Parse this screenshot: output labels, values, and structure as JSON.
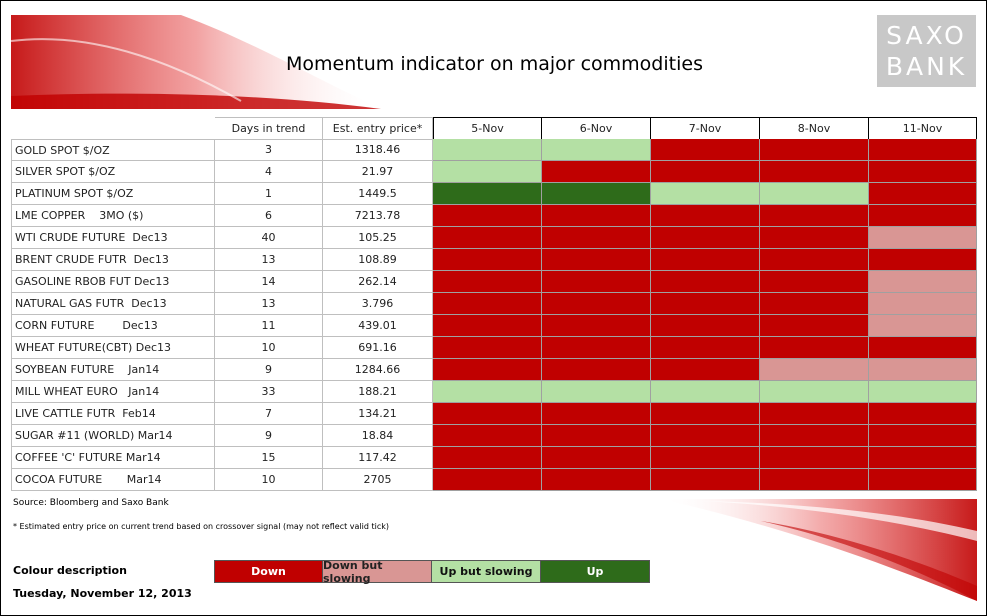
{
  "header": {
    "title": "Momentum indicator on major commodities",
    "logo": [
      "SAXO",
      "BANK"
    ]
  },
  "table": {
    "columns": [
      "Days in trend",
      "Est. entry price*",
      "5-Nov",
      "6-Nov",
      "7-Nov",
      "8-Nov",
      "11-Nov"
    ],
    "rows": [
      {
        "name": "GOLD SPOT $/OZ",
        "days": 3,
        "price": 1318.46,
        "trend": [
          "Up but slowing",
          "Up but slowing",
          "Down",
          "Down",
          "Down"
        ]
      },
      {
        "name": "SILVER SPOT $/OZ",
        "days": 4,
        "price": 21.97,
        "trend": [
          "Up but slowing",
          "Down",
          "Down",
          "Down",
          "Down"
        ]
      },
      {
        "name": "PLATINUM SPOT $/OZ",
        "days": 1,
        "price": 1449.5,
        "trend": [
          "Up",
          "Up",
          "Up but slowing",
          "Up but slowing",
          "Down"
        ]
      },
      {
        "name": "LME COPPER    3MO ($)",
        "days": 6,
        "price": 7213.78,
        "trend": [
          "Down",
          "Down",
          "Down",
          "Down",
          "Down"
        ]
      },
      {
        "name": "WTI CRUDE FUTURE  Dec13",
        "days": 40,
        "price": 105.25,
        "trend": [
          "Down",
          "Down",
          "Down",
          "Down",
          "Down but slowing"
        ]
      },
      {
        "name": "BRENT CRUDE FUTR  Dec13",
        "days": 13,
        "price": 108.89,
        "trend": [
          "Down",
          "Down",
          "Down",
          "Down",
          "Down"
        ]
      },
      {
        "name": "GASOLINE RBOB FUT Dec13",
        "days": 14,
        "price": 262.14,
        "trend": [
          "Down",
          "Down",
          "Down",
          "Down",
          "Down but slowing"
        ]
      },
      {
        "name": "NATURAL GAS FUTR  Dec13",
        "days": 13,
        "price": 3.796,
        "trend": [
          "Down",
          "Down",
          "Down",
          "Down",
          "Down but slowing"
        ]
      },
      {
        "name": "CORN FUTURE        Dec13",
        "days": 11,
        "price": 439.01,
        "trend": [
          "Down",
          "Down",
          "Down",
          "Down",
          "Down but slowing"
        ]
      },
      {
        "name": "WHEAT FUTURE(CBT) Dec13",
        "days": 10,
        "price": 691.16,
        "trend": [
          "Down",
          "Down",
          "Down",
          "Down",
          "Down"
        ]
      },
      {
        "name": "SOYBEAN FUTURE    Jan14",
        "days": 9,
        "price": 1284.66,
        "trend": [
          "Down",
          "Down",
          "Down",
          "Down but slowing",
          "Down but slowing"
        ]
      },
      {
        "name": "MILL WHEAT EURO   Jan14",
        "days": 33,
        "price": 188.21,
        "trend": [
          "Up but slowing",
          "Up but slowing",
          "Up but slowing",
          "Up but slowing",
          "Up but slowing"
        ]
      },
      {
        "name": "LIVE CATTLE FUTR  Feb14",
        "days": 7,
        "price": 134.21,
        "trend": [
          "Down",
          "Down",
          "Down",
          "Down",
          "Down"
        ]
      },
      {
        "name": "SUGAR #11 (WORLD) Mar14",
        "days": 9,
        "price": 18.84,
        "trend": [
          "Down",
          "Down",
          "Down",
          "Down",
          "Down"
        ]
      },
      {
        "name": "COFFEE 'C' FUTURE Mar14",
        "days": 15,
        "price": 117.42,
        "trend": [
          "Down",
          "Down",
          "Down",
          "Down",
          "Down"
        ]
      },
      {
        "name": "COCOA FUTURE       Mar14",
        "days": 10,
        "price": 2705,
        "trend": [
          "Down",
          "Down",
          "Down",
          "Down",
          "Down"
        ]
      }
    ]
  },
  "source": "Source: Bloomberg and Saxo Bank",
  "footnote": "* Estimated entry price on current trend based on crossover signal (may not reflect valid tick)",
  "legend": {
    "title": "Colour description",
    "items": [
      {
        "label": "Down",
        "color": "#c00000"
      },
      {
        "label": "Down but slowing",
        "color": "#d99694"
      },
      {
        "label": "Up but slowing",
        "color": "#b4e0a4"
      },
      {
        "label": "Up",
        "color": "#2e6b1a"
      }
    ]
  },
  "date": "Tuesday, November 12, 2013"
}
